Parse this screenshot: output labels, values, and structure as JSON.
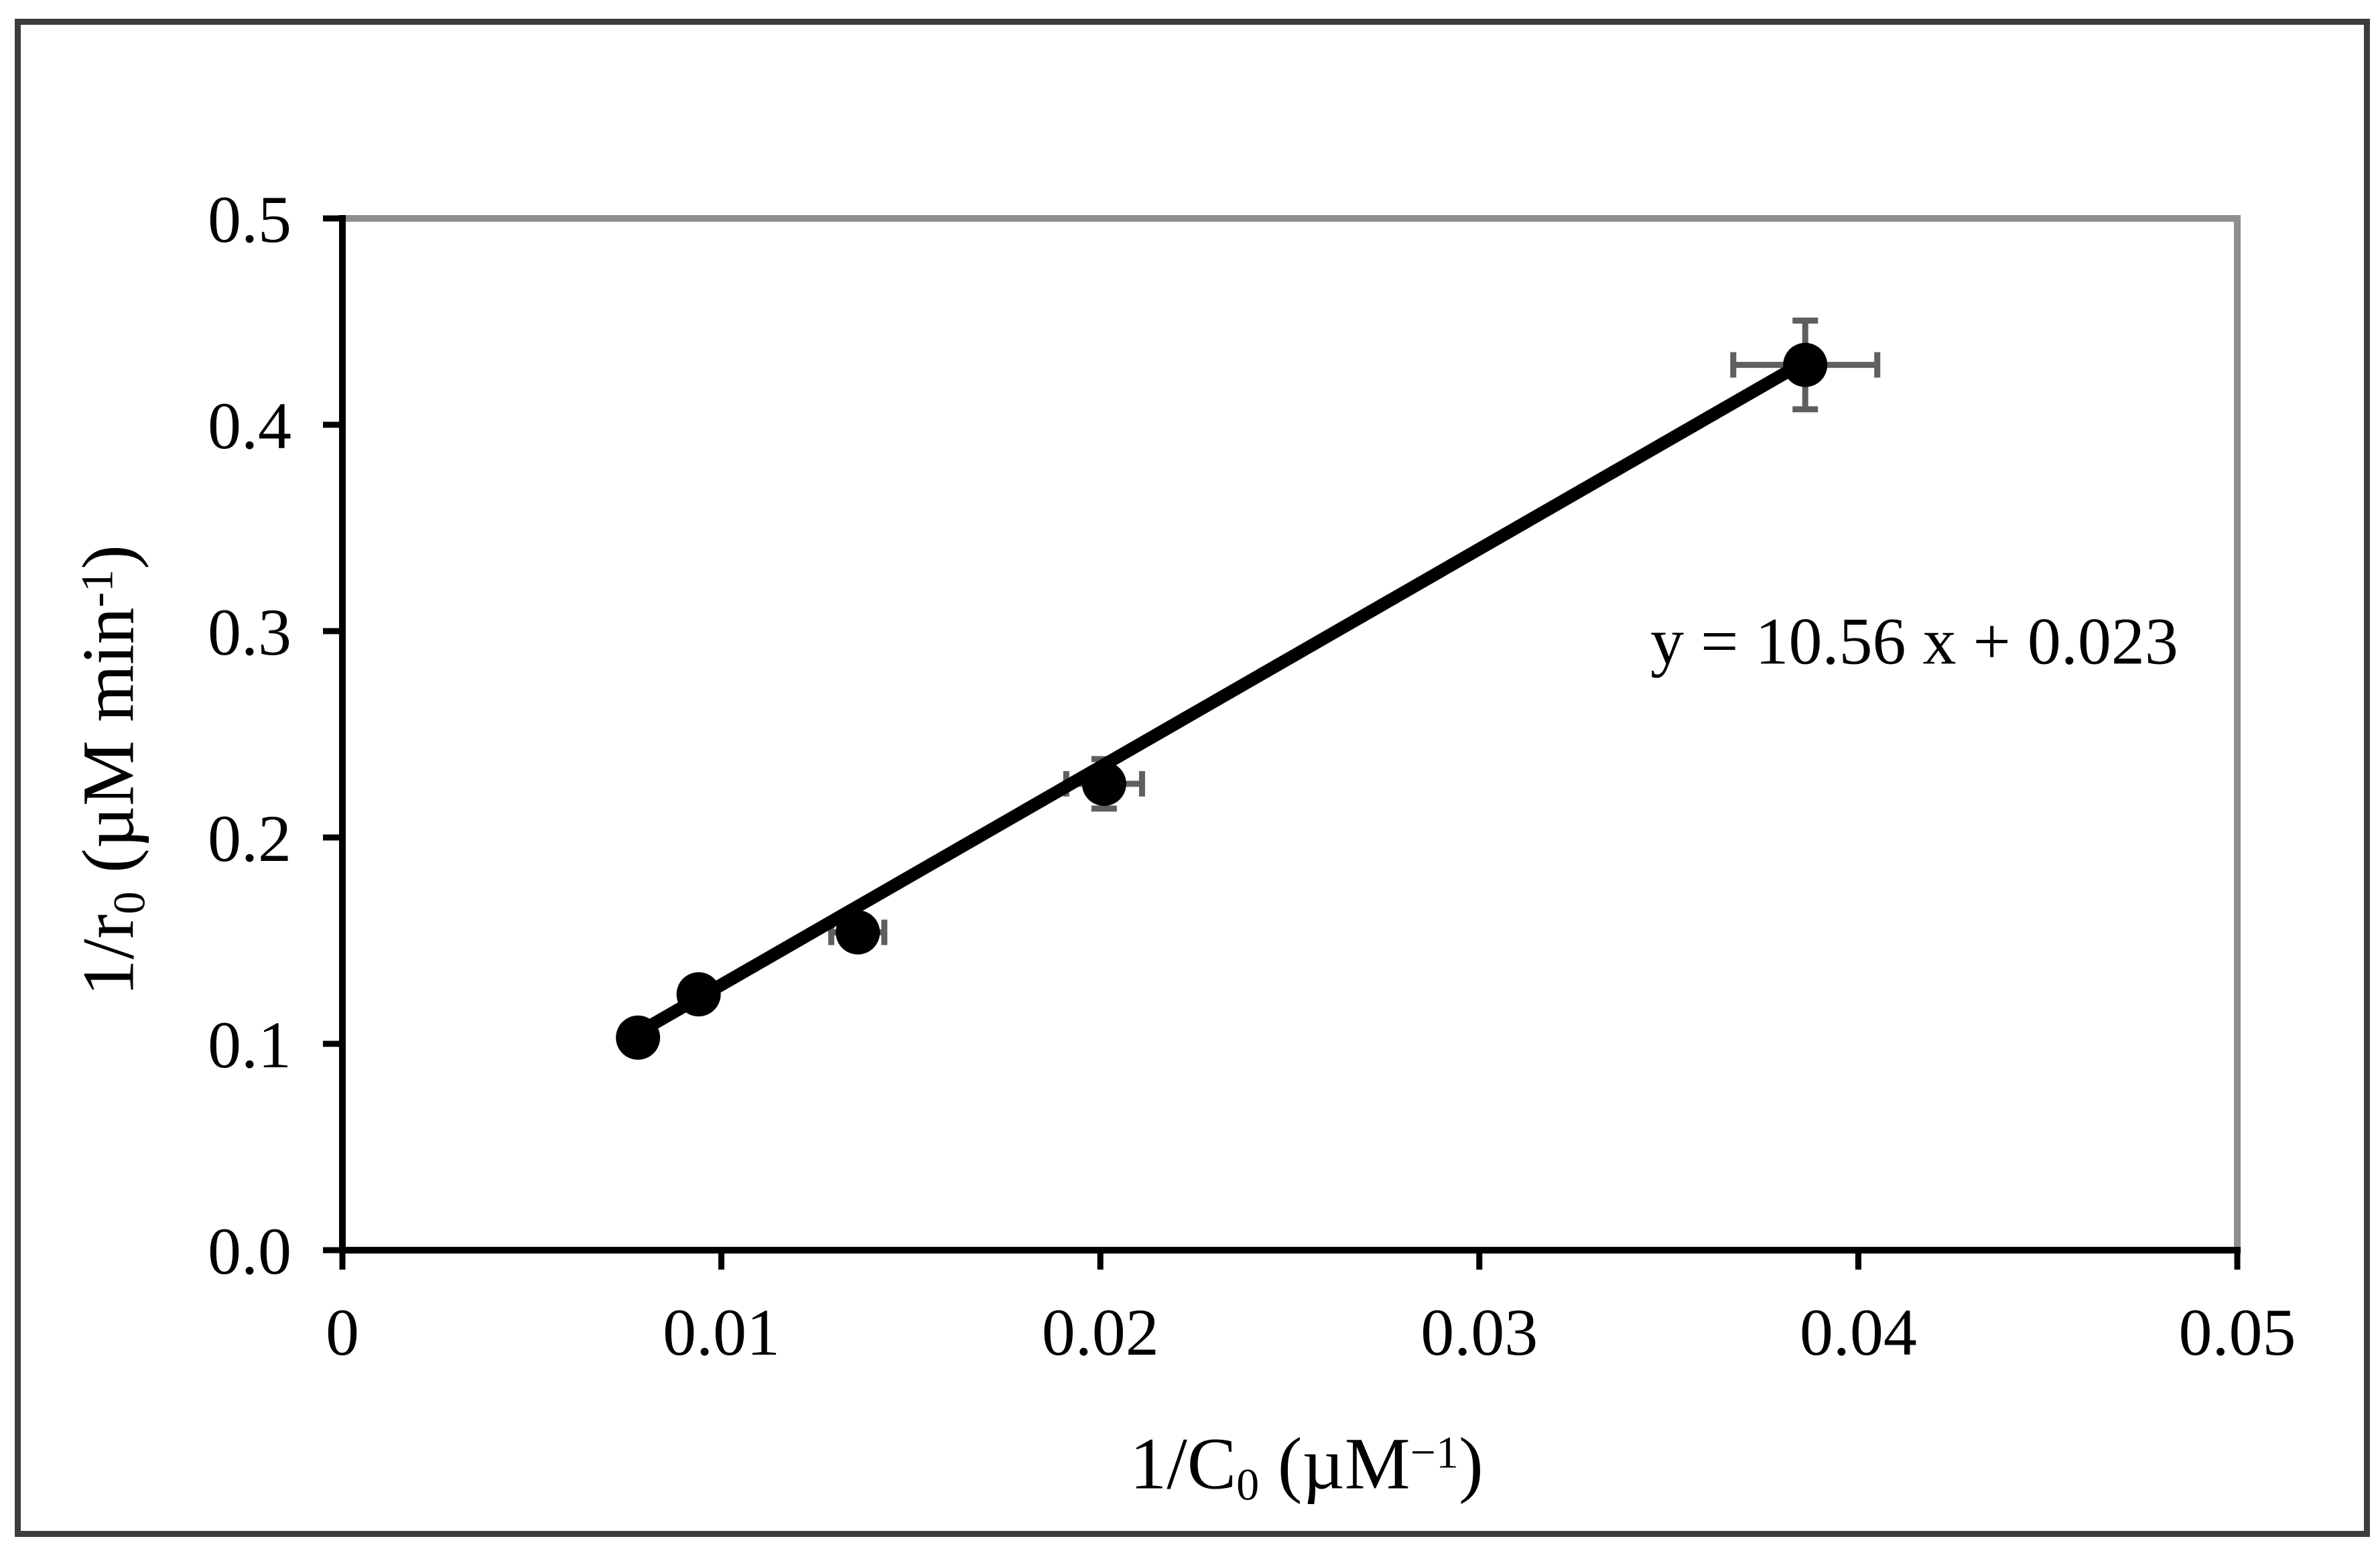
{
  "figure": {
    "background": "#ffffff",
    "frame_color": "#3c3c3c"
  },
  "chart_data": {
    "type": "scatter",
    "title": "",
    "xlabel": "1/C0 (µM−1)",
    "ylabel": "1/r0 (µM min-1)",
    "xlabel_parts": [
      {
        "t": "1/C"
      },
      {
        "sub": "0"
      },
      {
        "t": " (µM"
      },
      {
        "sup": "−1"
      },
      {
        "t": ")"
      }
    ],
    "ylabel_parts": [
      {
        "t": "1/r"
      },
      {
        "sub": "0"
      },
      {
        "t": " (µM min"
      },
      {
        "sup": "-1"
      },
      {
        "t": ")"
      }
    ],
    "xlim": [
      0,
      0.05
    ],
    "ylim": [
      0.0,
      0.5
    ],
    "grid": false,
    "legend": "none",
    "x_ticks": [
      {
        "value": 0,
        "label": "0"
      },
      {
        "value": 0.01,
        "label": "0.01"
      },
      {
        "value": 0.02,
        "label": "0.02"
      },
      {
        "value": 0.03,
        "label": "0.03"
      },
      {
        "value": 0.04,
        "label": "0.04"
      },
      {
        "value": 0.05,
        "label": "0.05"
      }
    ],
    "y_ticks": [
      {
        "value": 0.0,
        "label": "0.0"
      },
      {
        "value": 0.1,
        "label": "0.1"
      },
      {
        "value": 0.2,
        "label": "0.2"
      },
      {
        "value": 0.3,
        "label": "0.3"
      },
      {
        "value": 0.4,
        "label": "0.4"
      },
      {
        "value": 0.5,
        "label": "0.5"
      }
    ],
    "fit_line": {
      "label": "y = 10.56 x + 0.023",
      "slope": 10.56,
      "intercept": 0.023,
      "x_range": [
        0.0078,
        0.0386
      ]
    },
    "series": [
      {
        "marker": "circle",
        "color": "#000000",
        "points": [
          {
            "x": 0.0078,
            "y": 0.103,
            "xerr": null,
            "yerr": null
          },
          {
            "x": 0.0094,
            "y": 0.124,
            "xerr": null,
            "yerr": null
          },
          {
            "x": 0.0136,
            "y": 0.154,
            "xerr": 0.0007,
            "yerr": null
          },
          {
            "x": 0.0201,
            "y": 0.226,
            "xerr": 0.001,
            "yerr": 0.012
          },
          {
            "x": 0.0386,
            "y": 0.429,
            "xerr": 0.0019,
            "yerr": 0.0215
          }
        ]
      }
    ],
    "colors": {
      "axis": "#000000",
      "plot_border": "#8f8f8f",
      "error_bar": "#5f5f5f",
      "marker": "#000000",
      "trendline": "#000000",
      "text": "#000000"
    }
  }
}
